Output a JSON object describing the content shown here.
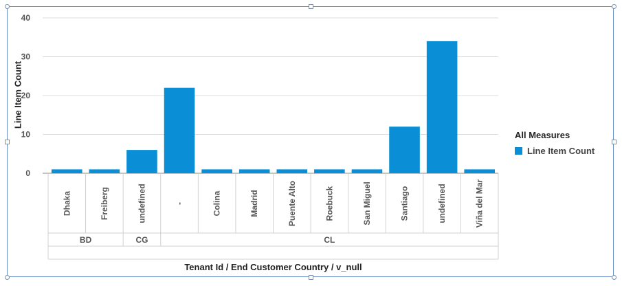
{
  "chart_data": {
    "type": "bar",
    "categories": [
      "Dhaka",
      "Freiberg",
      "undefined",
      "-",
      "Colina",
      "Madrid",
      "Puente Alto",
      "Roebuck",
      "San Miguel",
      "Santiago",
      "undefined",
      "Viña del Mar"
    ],
    "groups": [
      {
        "label": "BD",
        "span": 2
      },
      {
        "label": "CG",
        "span": 1
      },
      {
        "label": "CL",
        "span": 9
      }
    ],
    "series": [
      {
        "name": "Line Item Count",
        "values": [
          1,
          1,
          6,
          22,
          1,
          1,
          1,
          1,
          1,
          12,
          34,
          1
        ]
      }
    ],
    "ylim": [
      0,
      40
    ],
    "yticks": [
      0,
      10,
      20,
      30,
      40
    ],
    "xlabel": "Tenant Id / End Customer Country / v_null",
    "ylabel": "Line Item Count",
    "legend": {
      "title": "All Measures",
      "position": "right"
    },
    "grid": true,
    "color": "#0a8fd6"
  }
}
